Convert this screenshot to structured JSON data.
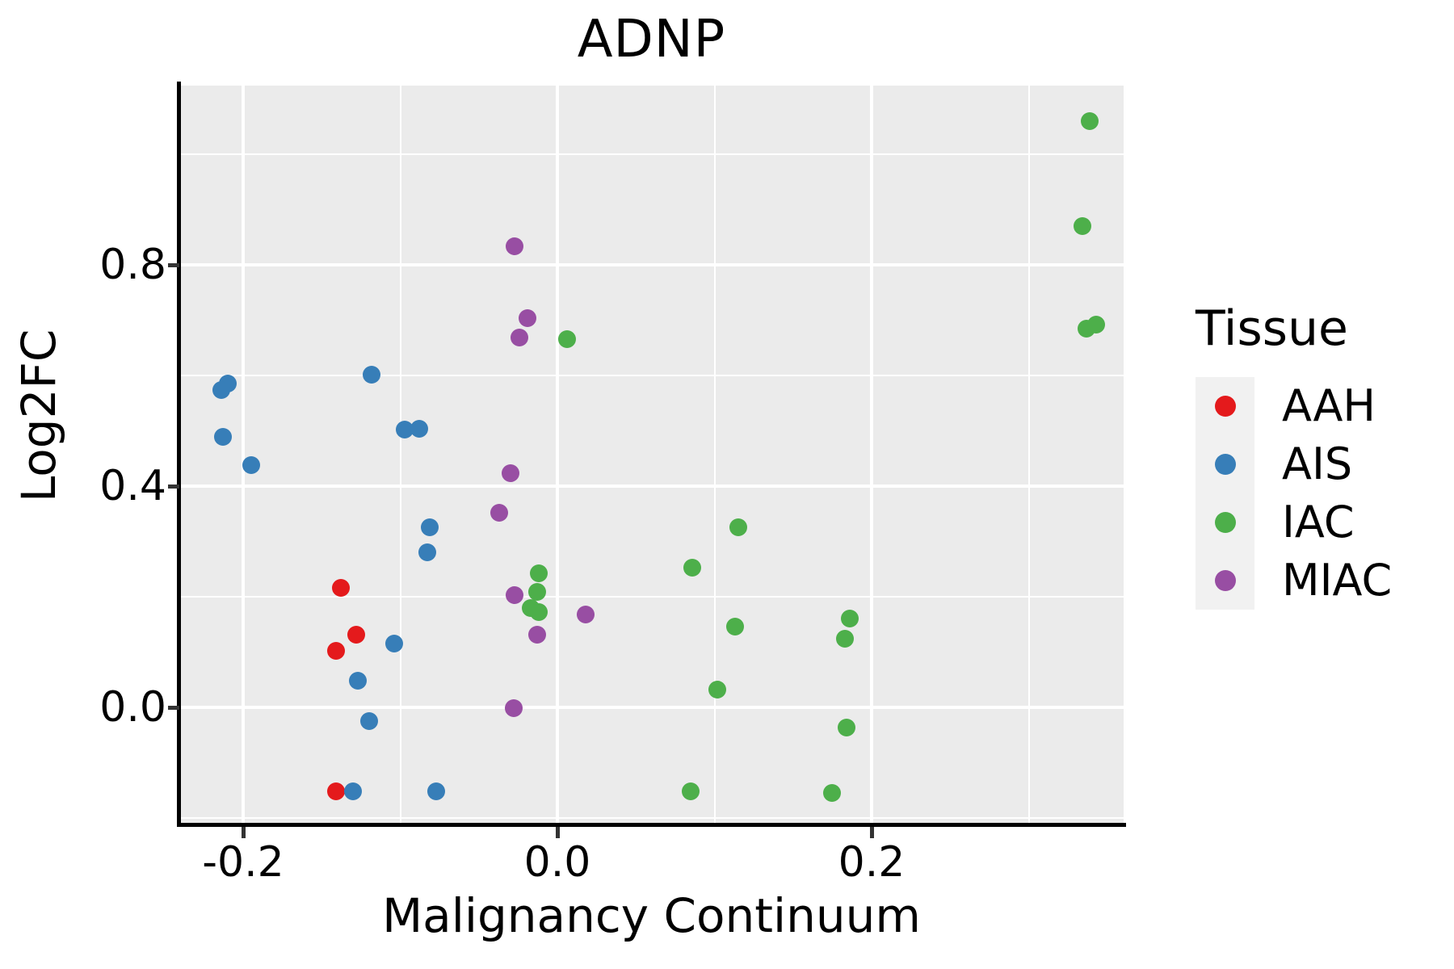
{
  "chart_title": "ADNP",
  "legend": {
    "title": "Tissue",
    "entries": [
      {
        "label": "AAH",
        "color": "#E41A1C"
      },
      {
        "label": "AIS",
        "color": "#377EB8"
      },
      {
        "label": "IAC",
        "color": "#4DAF4A"
      },
      {
        "label": "MIAC",
        "color": "#984EA3"
      }
    ]
  },
  "chart_data": {
    "type": "scatter",
    "title": "ADNP",
    "xlabel": "Malignancy Continuum",
    "ylabel": "Log2FC",
    "xlim": [
      -0.241,
      0.36
    ],
    "ylim": [
      -0.209,
      1.124
    ],
    "grid": true,
    "panel_background": "#EBEBEB",
    "legend_position": "right",
    "x_major_ticks": [
      {
        "value": -0.2,
        "label": "-0.2"
      },
      {
        "value": 0.0,
        "label": "0.0"
      },
      {
        "value": 0.2,
        "label": "0.2"
      }
    ],
    "x_minor_ticks": [
      -0.1,
      0.1,
      0.3
    ],
    "y_major_ticks": [
      {
        "value": 0.0,
        "label": "0.0"
      },
      {
        "value": 0.4,
        "label": "0.4"
      },
      {
        "value": 0.8,
        "label": "0.8"
      }
    ],
    "y_minor_ticks": [
      -0.2,
      0.2,
      0.6,
      1.0
    ],
    "series": [
      {
        "name": "AAH",
        "color": "#E41A1C",
        "points": [
          [
            -0.138,
            0.216
          ],
          [
            -0.128,
            0.131
          ],
          [
            -0.141,
            0.102
          ],
          [
            -0.141,
            -0.152
          ]
        ]
      },
      {
        "name": "AIS",
        "color": "#377EB8",
        "points": [
          [
            -0.21,
            0.585
          ],
          [
            -0.214,
            0.573
          ],
          [
            -0.213,
            0.489
          ],
          [
            -0.195,
            0.438
          ],
          [
            -0.118,
            0.601
          ],
          [
            -0.097,
            0.502
          ],
          [
            -0.088,
            0.503
          ],
          [
            -0.081,
            0.326
          ],
          [
            -0.083,
            0.28
          ],
          [
            -0.104,
            0.115
          ],
          [
            -0.127,
            0.048
          ],
          [
            -0.12,
            -0.025
          ],
          [
            -0.13,
            -0.152
          ],
          [
            -0.077,
            -0.152
          ]
        ]
      },
      {
        "name": "IAC",
        "color": "#4DAF4A",
        "points": [
          [
            0.006,
            0.666
          ],
          [
            -0.012,
            0.242
          ],
          [
            -0.013,
            0.209
          ],
          [
            -0.017,
            0.18
          ],
          [
            -0.012,
            0.172
          ],
          [
            0.086,
            0.253
          ],
          [
            0.115,
            0.326
          ],
          [
            0.113,
            0.146
          ],
          [
            0.102,
            0.032
          ],
          [
            0.186,
            0.161
          ],
          [
            0.183,
            0.124
          ],
          [
            0.184,
            -0.036
          ],
          [
            0.085,
            -0.152
          ],
          [
            0.175,
            -0.155
          ],
          [
            0.339,
            1.06
          ],
          [
            0.334,
            0.87
          ],
          [
            0.337,
            0.685
          ],
          [
            0.343,
            0.692
          ]
        ]
      },
      {
        "name": "MIAC",
        "color": "#984EA3",
        "points": [
          [
            -0.027,
            0.834
          ],
          [
            -0.019,
            0.703
          ],
          [
            -0.024,
            0.668
          ],
          [
            -0.03,
            0.423
          ],
          [
            -0.037,
            0.352
          ],
          [
            -0.027,
            0.203
          ],
          [
            -0.013,
            0.131
          ],
          [
            0.018,
            0.168
          ],
          [
            -0.028,
            -0.001
          ]
        ]
      }
    ]
  }
}
